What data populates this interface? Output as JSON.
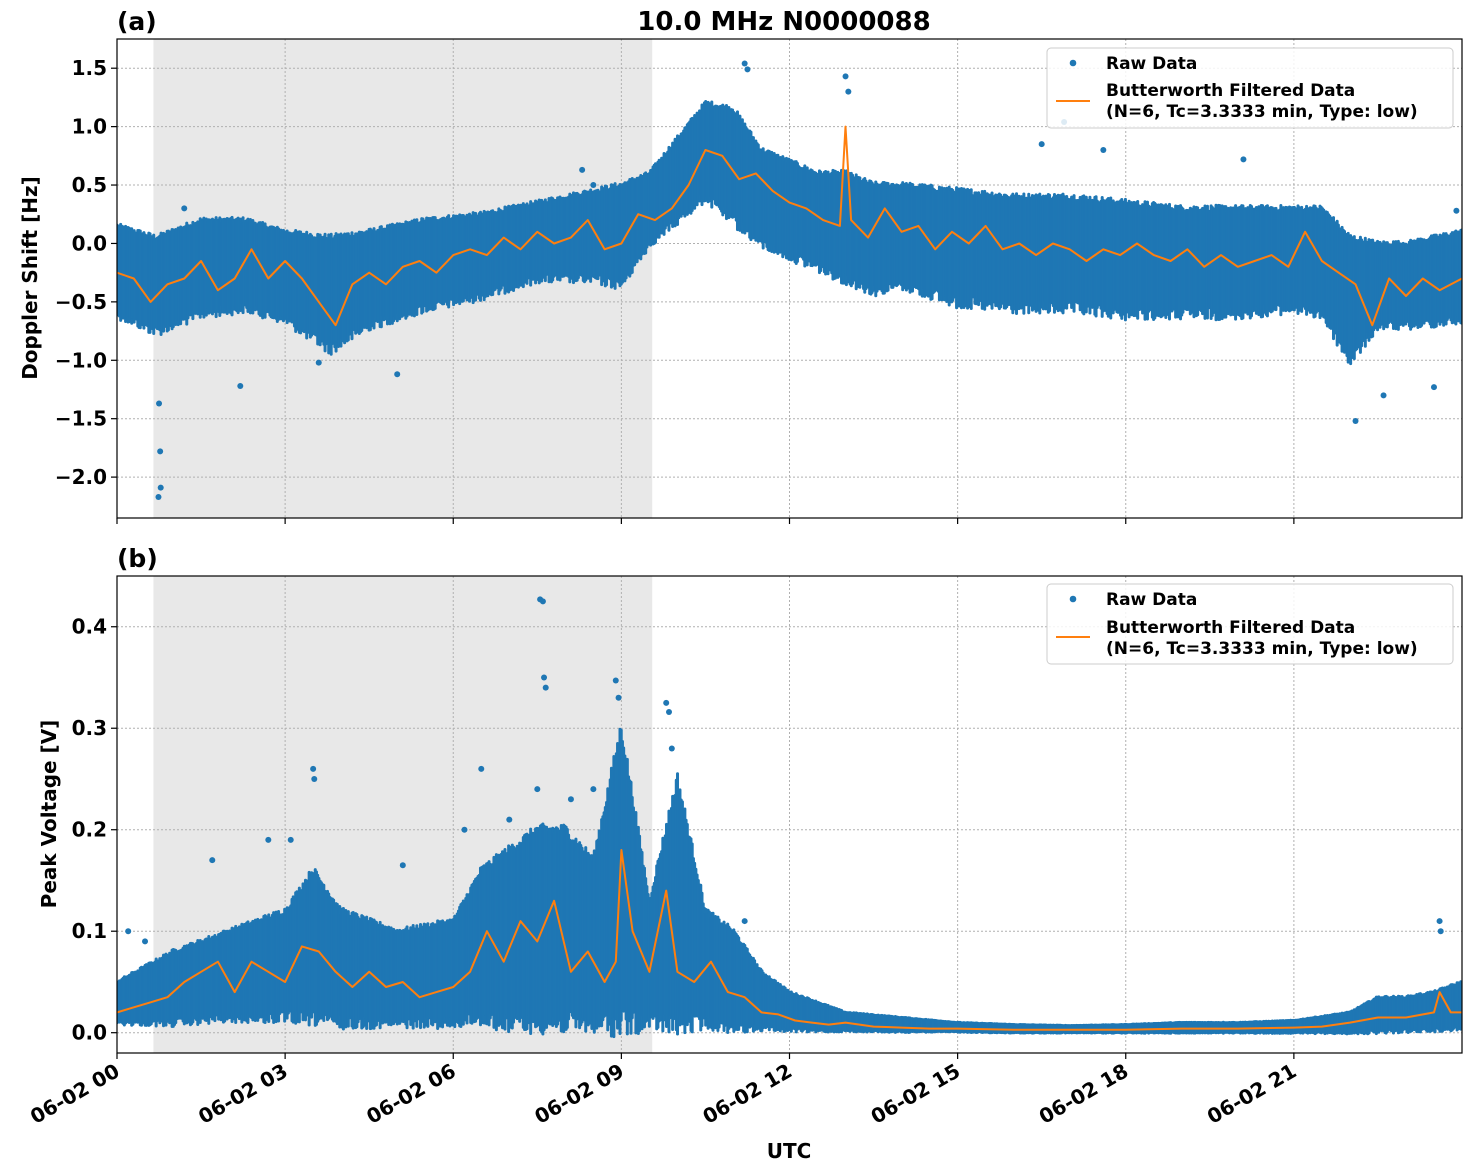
{
  "figure_title": "10.0 MHz N0000088",
  "colors": {
    "raw": "#1f77b4",
    "filtered": "#ff7f0e",
    "shade": "#e8e8e8"
  },
  "chart_data": [
    {
      "type": "scatter",
      "panel_label": "(a)",
      "ylabel": "Doppler Shift [Hz]",
      "xlabel": "",
      "x_unit": "hours UTC since 06-02 00:00",
      "xlim": [
        0,
        24
      ],
      "ylim": [
        -2.35,
        1.75
      ],
      "yticks": [
        1.5,
        1.0,
        0.5,
        0.0,
        -0.5,
        -1.0,
        -1.5,
        -2.0
      ],
      "ytick_labels": [
        "1.5",
        "1.0",
        "0.5",
        "0.0",
        "−0.5",
        "−1.0",
        "−1.5",
        "−2.0"
      ],
      "shaded_x": [
        0.65,
        9.55
      ],
      "grid": true,
      "legend_position": "top-right",
      "legend": [
        "Raw Data",
        "Butterworth Filtered Data",
        "(N=6, Tc=3.3333 min, Type: low)"
      ],
      "series": [
        {
          "name": "Raw Data",
          "kind": "band",
          "x": [
            0,
            0.7,
            1.5,
            2.3,
            3.0,
            3.8,
            4.5,
            5.5,
            6.5,
            7.5,
            8.5,
            9.0,
            9.5,
            10.0,
            10.5,
            11.0,
            11.5,
            12.0,
            12.5,
            13.0,
            13.5,
            14.0,
            15.0,
            16.0,
            17.0,
            18.0,
            19.0,
            20.0,
            21.0,
            21.5,
            22.0,
            22.5,
            23.0,
            24.0
          ],
          "low": [
            -0.6,
            -0.75,
            -0.6,
            -0.55,
            -0.65,
            -0.9,
            -0.7,
            -0.55,
            -0.45,
            -0.3,
            -0.3,
            -0.35,
            0.0,
            0.2,
            0.4,
            0.2,
            0.0,
            -0.1,
            -0.2,
            -0.3,
            -0.4,
            -0.35,
            -0.5,
            -0.55,
            -0.55,
            -0.6,
            -0.6,
            -0.6,
            -0.55,
            -0.6,
            -1.0,
            -0.7,
            -0.7,
            -0.65
          ],
          "high": [
            0.15,
            0.05,
            0.2,
            0.2,
            0.1,
            0.05,
            0.1,
            0.2,
            0.25,
            0.35,
            0.45,
            0.5,
            0.6,
            0.9,
            1.2,
            1.15,
            0.8,
            0.7,
            0.6,
            0.6,
            0.5,
            0.5,
            0.45,
            0.4,
            0.4,
            0.35,
            0.3,
            0.3,
            0.3,
            0.3,
            0.05,
            0.0,
            0.0,
            0.1
          ]
        },
        {
          "name": "Raw Data outliers",
          "kind": "points",
          "x": [
            0.75,
            0.77,
            0.78,
            0.74,
            1.2,
            2.2,
            3.6,
            5.0,
            8.3,
            8.5,
            11.2,
            11.25,
            13.0,
            13.05,
            16.5,
            16.9,
            17.6,
            20.1,
            22.1,
            22.6,
            23.5,
            23.9
          ],
          "y": [
            -1.37,
            -1.78,
            -2.09,
            -2.17,
            0.3,
            -1.22,
            -1.02,
            -1.12,
            0.63,
            0.5,
            1.54,
            1.49,
            1.43,
            1.3,
            0.85,
            1.04,
            0.8,
            0.72,
            -1.52,
            -1.3,
            -1.23,
            0.28
          ]
        },
        {
          "name": "Butterworth Filtered Data",
          "kind": "line",
          "x": [
            0,
            0.3,
            0.6,
            0.9,
            1.2,
            1.5,
            1.8,
            2.1,
            2.4,
            2.7,
            3.0,
            3.3,
            3.6,
            3.9,
            4.2,
            4.5,
            4.8,
            5.1,
            5.4,
            5.7,
            6.0,
            6.3,
            6.6,
            6.9,
            7.2,
            7.5,
            7.8,
            8.1,
            8.4,
            8.7,
            9.0,
            9.3,
            9.6,
            9.9,
            10.2,
            10.5,
            10.8,
            11.1,
            11.4,
            11.7,
            12.0,
            12.3,
            12.6,
            12.9,
            13.0,
            13.1,
            13.4,
            13.7,
            14.0,
            14.3,
            14.6,
            14.9,
            15.2,
            15.5,
            15.8,
            16.1,
            16.4,
            16.7,
            17.0,
            17.3,
            17.6,
            17.9,
            18.2,
            18.5,
            18.8,
            19.1,
            19.4,
            19.7,
            20.0,
            20.3,
            20.6,
            20.9,
            21.2,
            21.5,
            21.8,
            22.1,
            22.4,
            22.7,
            23.0,
            23.3,
            23.6,
            24.0
          ],
          "y": [
            -0.25,
            -0.3,
            -0.5,
            -0.35,
            -0.3,
            -0.15,
            -0.4,
            -0.3,
            -0.05,
            -0.3,
            -0.15,
            -0.3,
            -0.5,
            -0.7,
            -0.35,
            -0.25,
            -0.35,
            -0.2,
            -0.15,
            -0.25,
            -0.1,
            -0.05,
            -0.1,
            0.05,
            -0.05,
            0.1,
            0.0,
            0.05,
            0.2,
            -0.05,
            0.0,
            0.25,
            0.2,
            0.3,
            0.5,
            0.8,
            0.75,
            0.55,
            0.6,
            0.45,
            0.35,
            0.3,
            0.2,
            0.15,
            1.0,
            0.2,
            0.05,
            0.3,
            0.1,
            0.15,
            -0.05,
            0.1,
            0.0,
            0.15,
            -0.05,
            0.0,
            -0.1,
            0.0,
            -0.05,
            -0.15,
            -0.05,
            -0.1,
            0.0,
            -0.1,
            -0.15,
            -0.05,
            -0.2,
            -0.1,
            -0.2,
            -0.15,
            -0.1,
            -0.2,
            0.1,
            -0.15,
            -0.25,
            -0.35,
            -0.7,
            -0.3,
            -0.45,
            -0.3,
            -0.4,
            -0.3
          ]
        }
      ]
    },
    {
      "type": "scatter",
      "panel_label": "(b)",
      "ylabel": "Peak Voltage [V]",
      "xlabel": "UTC",
      "x_unit": "hours UTC since 06-02 00:00",
      "xlim": [
        0,
        24
      ],
      "ylim": [
        -0.02,
        0.45
      ],
      "yticks": [
        0.0,
        0.1,
        0.2,
        0.3,
        0.4
      ],
      "ytick_labels": [
        "0.0",
        "0.1",
        "0.2",
        "0.3",
        "0.4"
      ],
      "xticks": [
        0,
        3,
        6,
        9,
        12,
        15,
        18,
        21
      ],
      "xtick_labels": [
        "06-02 00",
        "06-02 03",
        "06-02 06",
        "06-02 09",
        "06-02 12",
        "06-02 15",
        "06-02 18",
        "06-02 21"
      ],
      "shaded_x": [
        0.65,
        9.55
      ],
      "grid": true,
      "legend_position": "top-right",
      "legend": [
        "Raw Data",
        "Butterworth Filtered Data",
        "(N=6, Tc=3.3333 min, Type: low)"
      ],
      "series": [
        {
          "name": "Raw Data",
          "kind": "band",
          "x": [
            0,
            1.0,
            2.0,
            3.0,
            3.5,
            4.0,
            5.0,
            6.0,
            6.5,
            7.0,
            7.5,
            8.0,
            8.5,
            9.0,
            9.5,
            10.0,
            10.5,
            11.0,
            11.5,
            12.0,
            12.5,
            13.0,
            14.0,
            15.0,
            16.0,
            17.0,
            18.0,
            19.0,
            20.0,
            21.0,
            22.0,
            22.5,
            23.0,
            23.5,
            24.0
          ],
          "low": [
            0.01,
            0.01,
            0.015,
            0.015,
            0.015,
            0.01,
            0.01,
            0.01,
            0.015,
            0.01,
            0.01,
            0.01,
            0.01,
            0.01,
            0.01,
            0.01,
            0.01,
            0.005,
            0.005,
            0.003,
            0.002,
            0.002,
            0.001,
            0.001,
            0.0,
            0.0,
            0.0,
            0.0,
            0.0,
            0.0,
            0.0,
            0.001,
            0.002,
            0.003,
            0.005
          ],
          "high": [
            0.05,
            0.08,
            0.1,
            0.12,
            0.16,
            0.12,
            0.1,
            0.11,
            0.16,
            0.18,
            0.2,
            0.2,
            0.17,
            0.3,
            0.13,
            0.25,
            0.12,
            0.1,
            0.06,
            0.04,
            0.03,
            0.02,
            0.015,
            0.01,
            0.008,
            0.007,
            0.008,
            0.01,
            0.01,
            0.012,
            0.02,
            0.035,
            0.035,
            0.04,
            0.05
          ]
        },
        {
          "name": "Raw Data outliers",
          "kind": "points",
          "x": [
            0.2,
            0.5,
            1.7,
            2.7,
            3.1,
            3.5,
            3.52,
            5.1,
            6.2,
            6.5,
            7.0,
            7.5,
            7.55,
            7.6,
            7.62,
            7.65,
            8.1,
            8.5,
            8.9,
            8.95,
            9.8,
            9.85,
            9.9,
            10.5,
            11.2,
            23.6,
            23.62
          ],
          "y": [
            0.1,
            0.09,
            0.17,
            0.19,
            0.19,
            0.26,
            0.25,
            0.165,
            0.2,
            0.26,
            0.21,
            0.24,
            0.427,
            0.425,
            0.35,
            0.34,
            0.23,
            0.24,
            0.347,
            0.33,
            0.325,
            0.316,
            0.28,
            0.12,
            0.11,
            0.11,
            0.1
          ]
        },
        {
          "name": "Butterworth Filtered Data",
          "kind": "line",
          "x": [
            0,
            0.3,
            0.6,
            0.9,
            1.2,
            1.5,
            1.8,
            2.1,
            2.4,
            2.7,
            3.0,
            3.3,
            3.6,
            3.9,
            4.2,
            4.5,
            4.8,
            5.1,
            5.4,
            5.7,
            6.0,
            6.3,
            6.6,
            6.9,
            7.2,
            7.5,
            7.8,
            8.1,
            8.4,
            8.7,
            8.9,
            9.0,
            9.2,
            9.5,
            9.8,
            10.0,
            10.3,
            10.6,
            10.9,
            11.2,
            11.5,
            11.8,
            12.1,
            12.4,
            12.7,
            13.0,
            13.5,
            14.0,
            14.5,
            15.0,
            16.0,
            17.0,
            18.0,
            19.0,
            20.0,
            21.0,
            21.5,
            22.0,
            22.5,
            23.0,
            23.5,
            23.6,
            23.8,
            24.0
          ],
          "y": [
            0.02,
            0.025,
            0.03,
            0.035,
            0.05,
            0.06,
            0.07,
            0.04,
            0.07,
            0.06,
            0.05,
            0.085,
            0.08,
            0.06,
            0.045,
            0.06,
            0.045,
            0.05,
            0.035,
            0.04,
            0.045,
            0.06,
            0.1,
            0.07,
            0.11,
            0.09,
            0.13,
            0.06,
            0.08,
            0.05,
            0.07,
            0.18,
            0.1,
            0.06,
            0.14,
            0.06,
            0.05,
            0.07,
            0.04,
            0.035,
            0.02,
            0.018,
            0.012,
            0.01,
            0.008,
            0.01,
            0.006,
            0.005,
            0.004,
            0.004,
            0.003,
            0.003,
            0.003,
            0.004,
            0.004,
            0.005,
            0.006,
            0.01,
            0.015,
            0.015,
            0.02,
            0.04,
            0.02,
            0.02
          ]
        }
      ]
    }
  ]
}
